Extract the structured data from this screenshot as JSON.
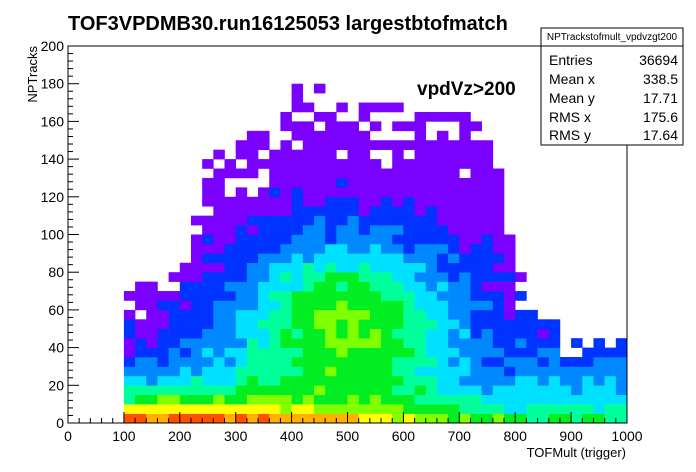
{
  "chart_data": {
    "type": "heatmap",
    "title": "TOF3VPDMB30.run16125053 largestbtofmatch",
    "xlabel": "TOFMult (trigger)",
    "ylabel": "NPTracks",
    "xlim": [
      0,
      1000
    ],
    "ylim": [
      0,
      200
    ],
    "x_ticks": [
      "0",
      "100",
      "200",
      "300",
      "400",
      "500",
      "600",
      "700",
      "800",
      "900",
      "1000"
    ],
    "y_ticks": [
      "0",
      "20",
      "40",
      "60",
      "80",
      "100",
      "120",
      "140",
      "160",
      "180",
      "200"
    ],
    "bin_width_x": 20,
    "bin_width_y": 5,
    "annotation": "vpdVz>200",
    "grid": false,
    "colormap": [
      "#7a00ff",
      "#0033ff",
      "#0088ff",
      "#00e0ff",
      "#00ff9a",
      "#00ee22",
      "#80ff00",
      "#ffff00",
      "#ffb000",
      "#ff5000",
      "#ff0000"
    ],
    "populated_region": {
      "x_range": [
        100,
        1000
      ],
      "core_x_range": [
        100,
        800
      ],
      "max_y_by_x": [
        [
          100,
          65
        ],
        [
          200,
          75
        ],
        [
          260,
          145
        ],
        [
          360,
          150
        ],
        [
          400,
          175
        ],
        [
          600,
          165
        ],
        [
          700,
          160
        ],
        [
          760,
          145
        ],
        [
          800,
          80
        ],
        [
          900,
          40
        ],
        [
          1000,
          40
        ]
      ],
      "density_peak": {
        "x": 150,
        "y": 5
      }
    },
    "stats_box": {
      "name": "NPTrackstofmult_vpdvzgt200",
      "rows": [
        {
          "label": "Entries",
          "value": "36694"
        },
        {
          "label": "Mean x",
          "value": "338.5"
        },
        {
          "label": "Mean y",
          "value": "17.71"
        },
        {
          "label": "RMS x",
          "value": "175.6"
        },
        {
          "label": "RMS y",
          "value": "17.64"
        }
      ]
    }
  }
}
